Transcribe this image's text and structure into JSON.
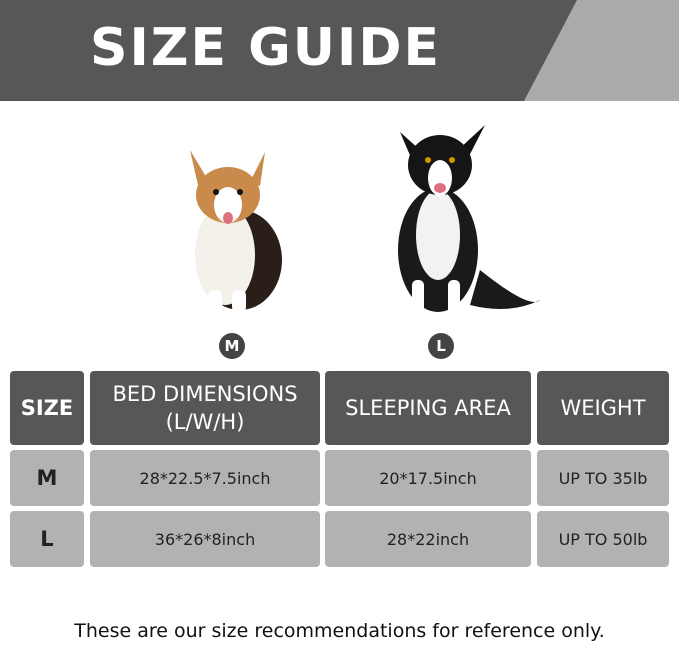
{
  "banner": {
    "title": "SIZE GUIDE",
    "colors": {
      "dark": "#575757",
      "accent": "#aaaaaa"
    }
  },
  "dogs": [
    {
      "image": "corgi-icon",
      "size_badge": "M"
    },
    {
      "image": "border-collie-icon",
      "size_badge": "L"
    }
  ],
  "table": {
    "headers": [
      "SIZE",
      "BED DIMENSIONS\n(L/W/H)",
      "SLEEPING AREA",
      "WEIGHT"
    ],
    "rows": [
      [
        "M",
        "28*22.5*7.5inch",
        "20*17.5inch",
        "UP TO 35lb"
      ],
      [
        "L",
        "36*26*8inch",
        "28*22inch",
        "UP TO 50lb"
      ]
    ]
  },
  "footer": "These are our size recommendations for reference only."
}
